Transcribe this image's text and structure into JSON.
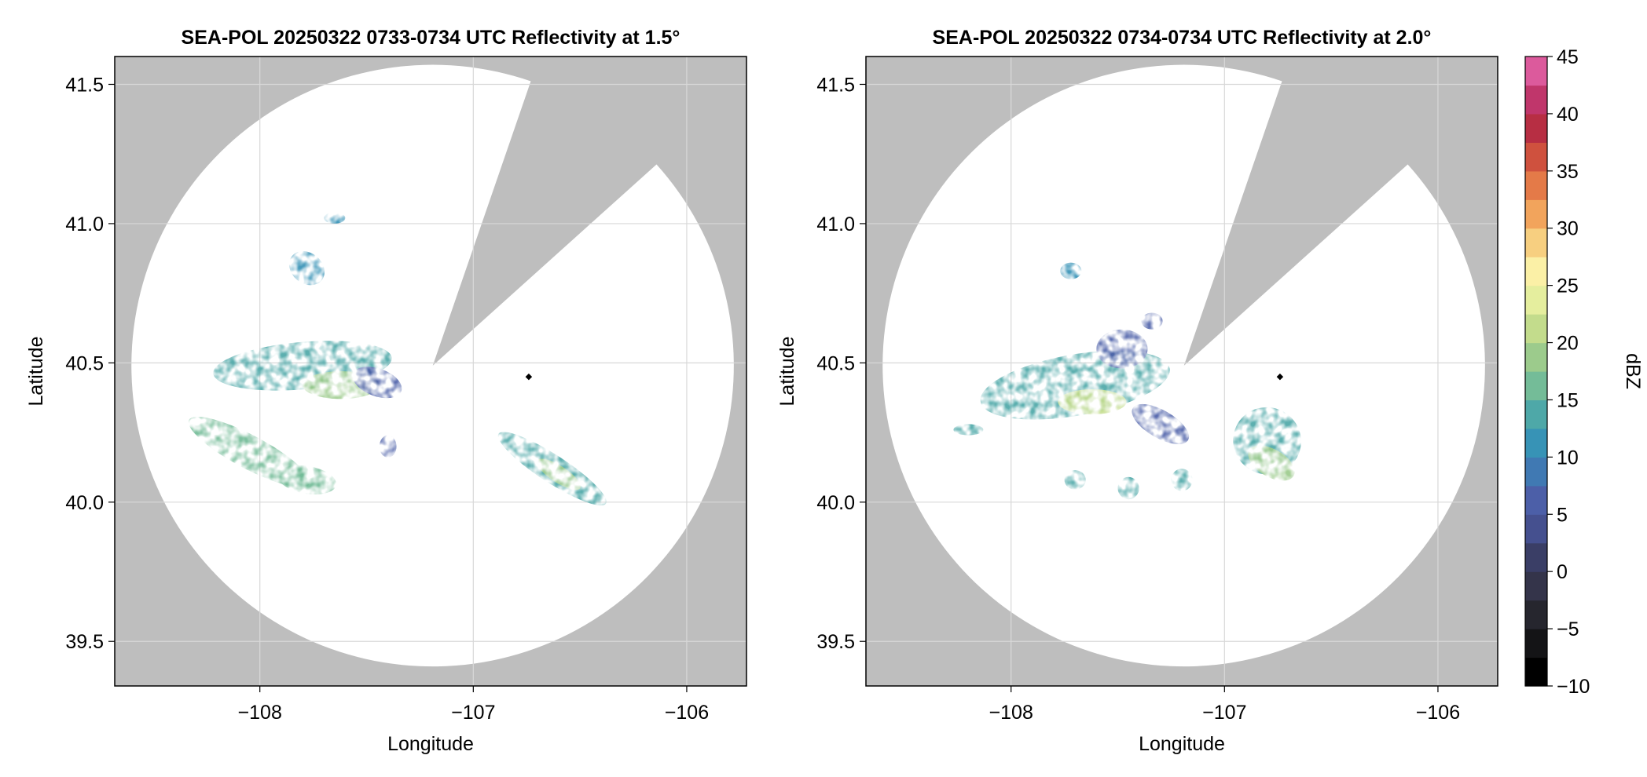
{
  "chart_data": [
    {
      "type": "heatmap",
      "title": "SEA-POL 20250322 0733-0734 UTC Reflectivity at 1.5°",
      "xlabel": "Longitude",
      "ylabel": "Latitude",
      "xlim": [
        -108.68,
        -105.72
      ],
      "ylim": [
        39.34,
        41.6
      ],
      "xticks": [
        -108,
        -107,
        -106
      ],
      "xtick_labels": [
        "−108",
        "−107",
        "−106"
      ],
      "yticks": [
        39.5,
        40.0,
        40.5,
        41.0,
        41.5
      ],
      "ytick_labels": [
        "39.5",
        "40.0",
        "40.5",
        "41.0",
        "41.5"
      ],
      "grid": true,
      "radar_site": {
        "lon": -107.19,
        "lat": 40.49
      },
      "coverage": {
        "center_lon": -107.19,
        "center_lat": 40.49,
        "radius_deg_lat": 1.08,
        "blocked_sectors_deg": [
          [
            19,
            48
          ]
        ]
      },
      "marker": {
        "lon": -106.74,
        "lat": 40.45
      },
      "echo_regions": [
        {
          "lon": -107.8,
          "lat": 40.49,
          "rx": 0.42,
          "ry": 0.085,
          "rot": -5,
          "dbz": 14
        },
        {
          "lon": -107.62,
          "lat": 40.42,
          "rx": 0.18,
          "ry": 0.05,
          "rot": 0,
          "dbz": 19
        },
        {
          "lon": -107.45,
          "lat": 40.43,
          "rx": 0.12,
          "ry": 0.05,
          "rot": 20,
          "dbz": 6
        },
        {
          "lon": -108.05,
          "lat": 40.18,
          "rx": 0.32,
          "ry": 0.06,
          "rot": 28,
          "dbz": 15
        },
        {
          "lon": -107.78,
          "lat": 40.08,
          "rx": 0.14,
          "ry": 0.05,
          "rot": 10,
          "dbz": 17
        },
        {
          "lon": -106.63,
          "lat": 40.12,
          "rx": 0.3,
          "ry": 0.05,
          "rot": 33,
          "dbz": 14
        },
        {
          "lon": -106.6,
          "lat": 40.1,
          "rx": 0.12,
          "ry": 0.03,
          "rot": 33,
          "dbz": 19
        },
        {
          "lon": -107.78,
          "lat": 40.84,
          "rx": 0.09,
          "ry": 0.055,
          "rot": 40,
          "dbz": 11
        },
        {
          "lon": -107.65,
          "lat": 41.02,
          "rx": 0.05,
          "ry": 0.02,
          "rot": 0,
          "dbz": 12
        },
        {
          "lon": -107.4,
          "lat": 40.2,
          "rx": 0.04,
          "ry": 0.04,
          "rot": 0,
          "dbz": 7
        }
      ]
    },
    {
      "type": "heatmap",
      "title": "SEA-POL 20250322 0734-0734 UTC Reflectivity at 2.0°",
      "xlabel": "Longitude",
      "ylabel": "Latitude",
      "xlim": [
        -108.68,
        -105.72
      ],
      "ylim": [
        39.34,
        41.6
      ],
      "xticks": [
        -108,
        -107,
        -106
      ],
      "xtick_labels": [
        "−108",
        "−107",
        "−106"
      ],
      "yticks": [
        39.5,
        40.0,
        40.5,
        41.0,
        41.5
      ],
      "ytick_labels": [
        "39.5",
        "40.0",
        "40.5",
        "41.0",
        "41.5"
      ],
      "grid": true,
      "radar_site": {
        "lon": -107.19,
        "lat": 40.49
      },
      "coverage": {
        "center_lon": -107.19,
        "center_lat": 40.49,
        "radius_deg_lat": 1.08,
        "blocked_sectors_deg": [
          [
            19,
            48
          ]
        ]
      },
      "marker": {
        "lon": -106.74,
        "lat": 40.45
      },
      "echo_regions": [
        {
          "lon": -107.7,
          "lat": 40.42,
          "rx": 0.45,
          "ry": 0.11,
          "rot": -10,
          "dbz": 14
        },
        {
          "lon": -107.62,
          "lat": 40.36,
          "rx": 0.16,
          "ry": 0.045,
          "rot": 0,
          "dbz": 22
        },
        {
          "lon": -107.48,
          "lat": 40.55,
          "rx": 0.12,
          "ry": 0.07,
          "rot": 0,
          "dbz": 7
        },
        {
          "lon": -107.3,
          "lat": 40.28,
          "rx": 0.15,
          "ry": 0.05,
          "rot": 30,
          "dbz": 7
        },
        {
          "lon": -106.8,
          "lat": 40.22,
          "rx": 0.16,
          "ry": 0.12,
          "rot": 30,
          "dbz": 14
        },
        {
          "lon": -106.78,
          "lat": 40.14,
          "rx": 0.12,
          "ry": 0.05,
          "rot": 30,
          "dbz": 18
        },
        {
          "lon": -107.45,
          "lat": 40.05,
          "rx": 0.05,
          "ry": 0.04,
          "rot": 0,
          "dbz": 13
        },
        {
          "lon": -107.2,
          "lat": 40.08,
          "rx": 0.05,
          "ry": 0.04,
          "rot": 0,
          "dbz": 13
        },
        {
          "lon": -107.7,
          "lat": 40.08,
          "rx": 0.05,
          "ry": 0.035,
          "rot": 0,
          "dbz": 13
        },
        {
          "lon": -107.72,
          "lat": 40.83,
          "rx": 0.05,
          "ry": 0.03,
          "rot": 0,
          "dbz": 11
        },
        {
          "lon": -108.2,
          "lat": 40.26,
          "rx": 0.07,
          "ry": 0.02,
          "rot": 0,
          "dbz": 14
        },
        {
          "lon": -107.34,
          "lat": 40.65,
          "rx": 0.05,
          "ry": 0.03,
          "rot": 0,
          "dbz": 6
        }
      ]
    }
  ],
  "colorbar": {
    "label": "dBZ",
    "min": -10,
    "max": 45,
    "step": 2.5,
    "ticks": [
      -10,
      -5,
      0,
      5,
      10,
      15,
      20,
      25,
      30,
      35,
      40,
      45
    ],
    "tick_labels": [
      "−10",
      "−5",
      "0",
      "5",
      "10",
      "15",
      "20",
      "25",
      "30",
      "35",
      "40",
      "45"
    ],
    "colors": [
      "#000000",
      "#141416",
      "#26262e",
      "#34344a",
      "#3a3e66",
      "#45508f",
      "#4c5fa8",
      "#4079b3",
      "#3793b6",
      "#4ea8a8",
      "#74bc98",
      "#9ccb8c",
      "#c3dc8c",
      "#e5ee9e",
      "#fbf0a6",
      "#f7cf80",
      "#f2a45c",
      "#e47a48",
      "#cf513e",
      "#b72e43",
      "#c0366b",
      "#dc5a9c",
      "#ec8abf",
      "#e2a8d6",
      "#c58fc6",
      "#9b6aad",
      "#74468e",
      "#501f6c",
      "#3a0a4f"
    ]
  },
  "colors": {
    "no_coverage": "#bebebe",
    "coverage": "#ffffff",
    "grid": "#d8d8d8",
    "frame": "#000000"
  }
}
